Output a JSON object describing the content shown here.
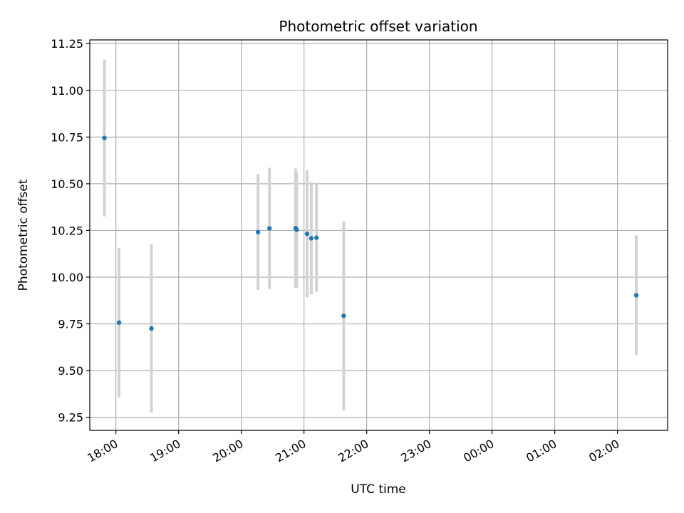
{
  "chart_data": {
    "type": "scatter",
    "title": "Photometric offset variation",
    "xlabel": "UTC time",
    "ylabel": "Photometric offset",
    "x_axis_kind": "time",
    "xlim": [
      "17:35",
      "02:48"
    ],
    "ylim": [
      9.18,
      11.27
    ],
    "grid": true,
    "x_ticks": [
      "18:00",
      "19:00",
      "20:00",
      "21:00",
      "22:00",
      "23:00",
      "00:00",
      "01:00",
      "02:00"
    ],
    "y_ticks": [
      "9.25",
      "9.50",
      "9.75",
      "10.00",
      "10.25",
      "10.50",
      "10.75",
      "11.00",
      "11.25"
    ],
    "colors": {
      "point": "#1f77b4",
      "errorbar": "#d3d3d3",
      "grid": "#b0b0b0"
    },
    "points": [
      {
        "x": "17:49",
        "y": 10.745,
        "err": 0.42
      },
      {
        "x": "18:03",
        "y": 9.757,
        "err": 0.4
      },
      {
        "x": "18:34",
        "y": 9.725,
        "err": 0.45
      },
      {
        "x": "20:16",
        "y": 10.241,
        "err": 0.31
      },
      {
        "x": "20:27",
        "y": 10.261,
        "err": 0.325
      },
      {
        "x": "20:52",
        "y": 10.262,
        "err": 0.32
      },
      {
        "x": "20:53",
        "y": 10.254,
        "err": 0.31
      },
      {
        "x": "21:03",
        "y": 10.232,
        "err": 0.34
      },
      {
        "x": "21:07",
        "y": 10.208,
        "err": 0.3
      },
      {
        "x": "21:12",
        "y": 10.211,
        "err": 0.29
      },
      {
        "x": "21:38",
        "y": 9.793,
        "err": 0.505
      },
      {
        "x": "02:18",
        "y": 9.903,
        "err": 0.32
      }
    ]
  }
}
